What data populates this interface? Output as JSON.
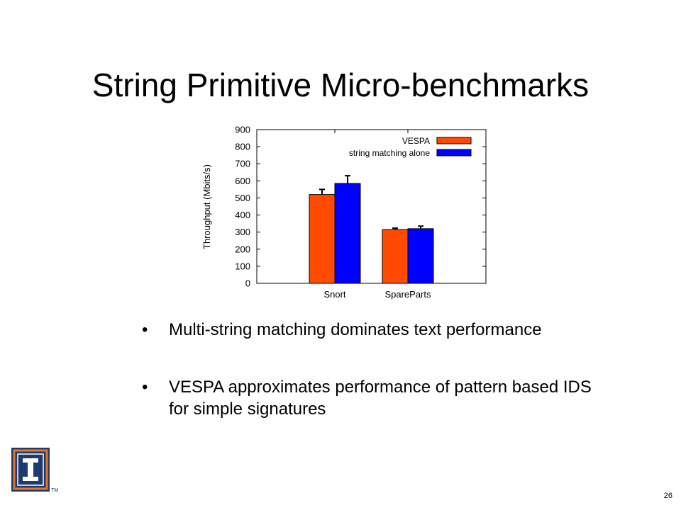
{
  "slide": {
    "title": "String Primitive Micro-benchmarks",
    "bullets": [
      "Multi-string matching dominates text performance",
      "VESPA approximates performance of pattern based IDS for simple signatures"
    ],
    "bullet_glyph": "•",
    "page_number": "26",
    "logo_mark": "TM"
  },
  "chart_data": {
    "type": "bar",
    "categories": [
      "Snort",
      "SpareParts"
    ],
    "series": [
      {
        "name": "VESPA",
        "values": [
          520,
          315
        ],
        "errors": [
          30,
          8
        ],
        "color": "#ff4a00"
      },
      {
        "name": "string matching alone",
        "values": [
          585,
          320
        ],
        "errors": [
          45,
          15
        ],
        "color": "#0000ff"
      }
    ],
    "ylabel": "Throughput (Mbits/s)",
    "xlabel": "",
    "ylim": [
      0,
      900
    ],
    "yticks": [
      0,
      100,
      200,
      300,
      400,
      500,
      600,
      700,
      800,
      900
    ],
    "legend_position": "top-right",
    "grid": false
  }
}
